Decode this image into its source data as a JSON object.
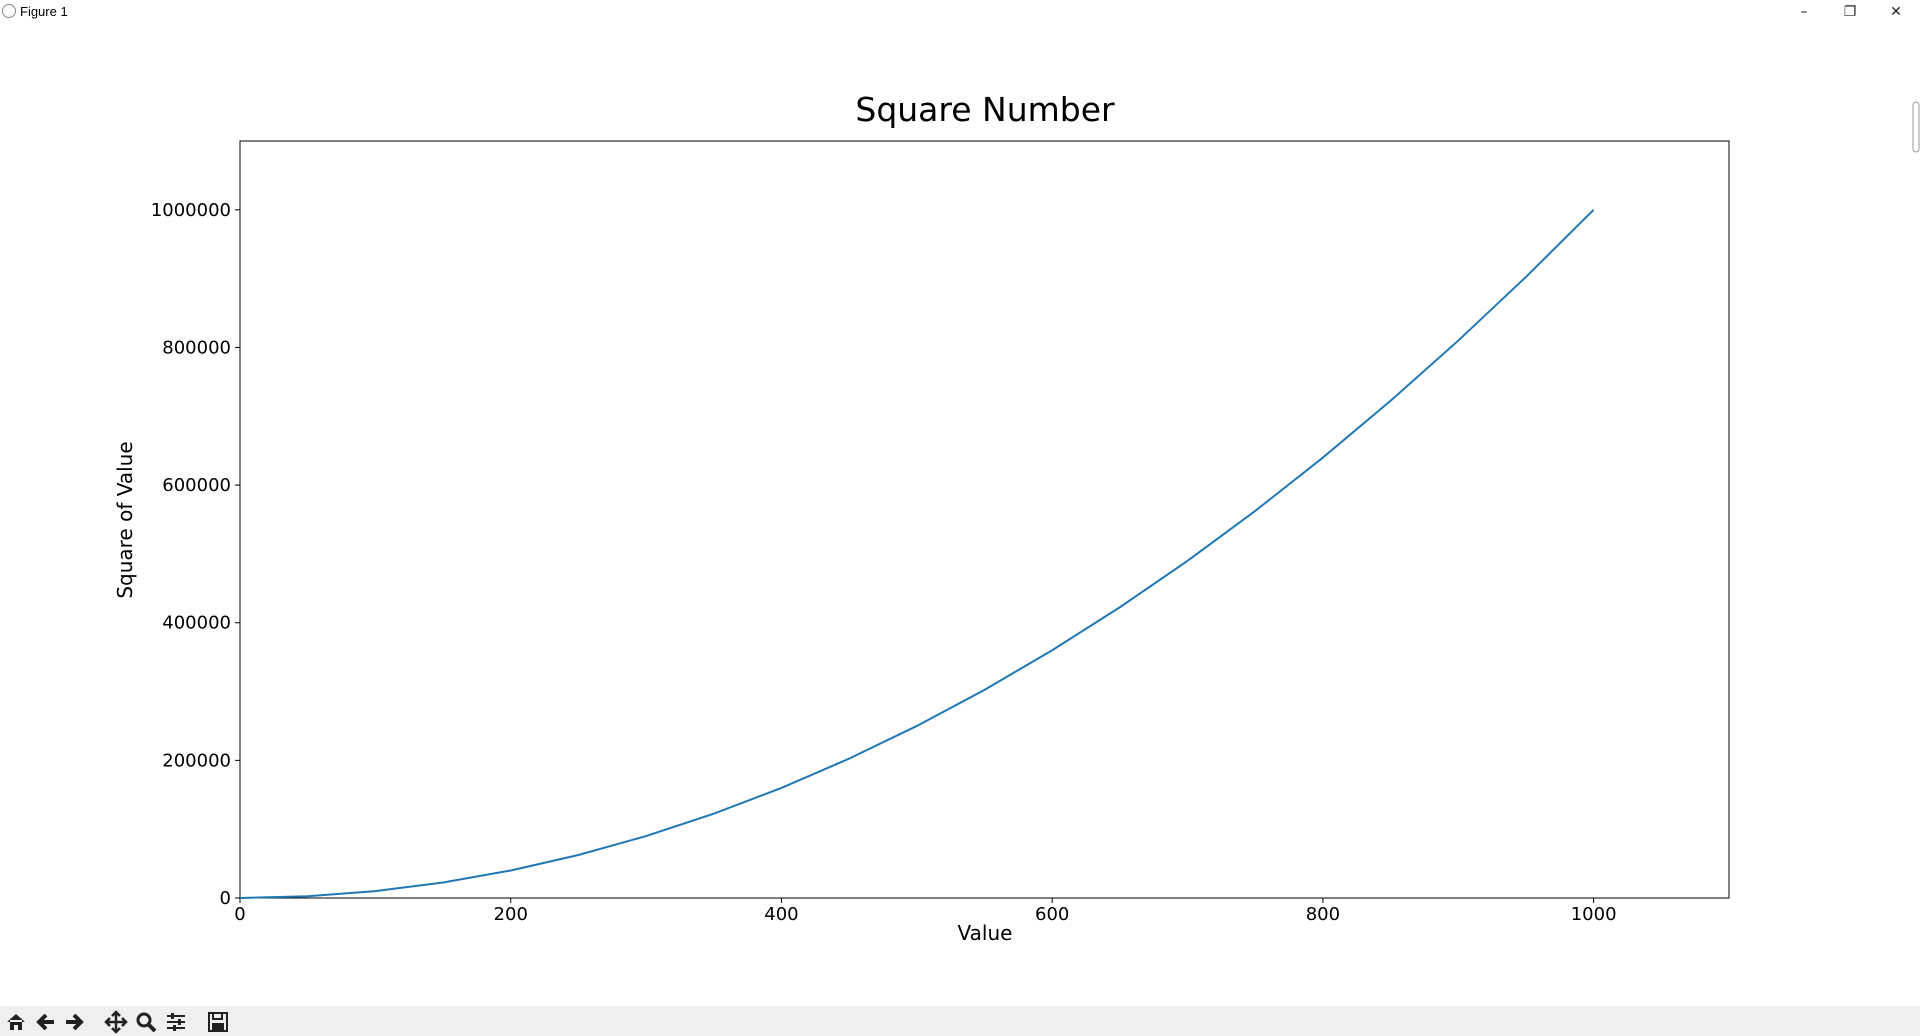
{
  "window": {
    "title": "Figure 1"
  },
  "chart_data": {
    "type": "line",
    "title": "Square Number",
    "x_label": "Value",
    "y_label": "Square of Value",
    "x": [
      0,
      50,
      100,
      150,
      200,
      250,
      300,
      350,
      400,
      450,
      500,
      550,
      600,
      650,
      700,
      750,
      800,
      850,
      900,
      950,
      1000
    ],
    "values": [
      0,
      2500,
      10000,
      22500,
      40000,
      62500,
      90000,
      122500,
      160000,
      202500,
      250000,
      302500,
      360000,
      422500,
      490000,
      562500,
      640000,
      722500,
      810000,
      902500,
      1000000
    ],
    "color": "#1f77b4",
    "xlim": [
      0,
      1100
    ],
    "ylim": [
      0,
      1100000
    ],
    "xticks": [
      0,
      200,
      400,
      600,
      800,
      1000
    ],
    "yticks": [
      0,
      200000,
      400000,
      600000,
      800000,
      1000000
    ]
  }
}
